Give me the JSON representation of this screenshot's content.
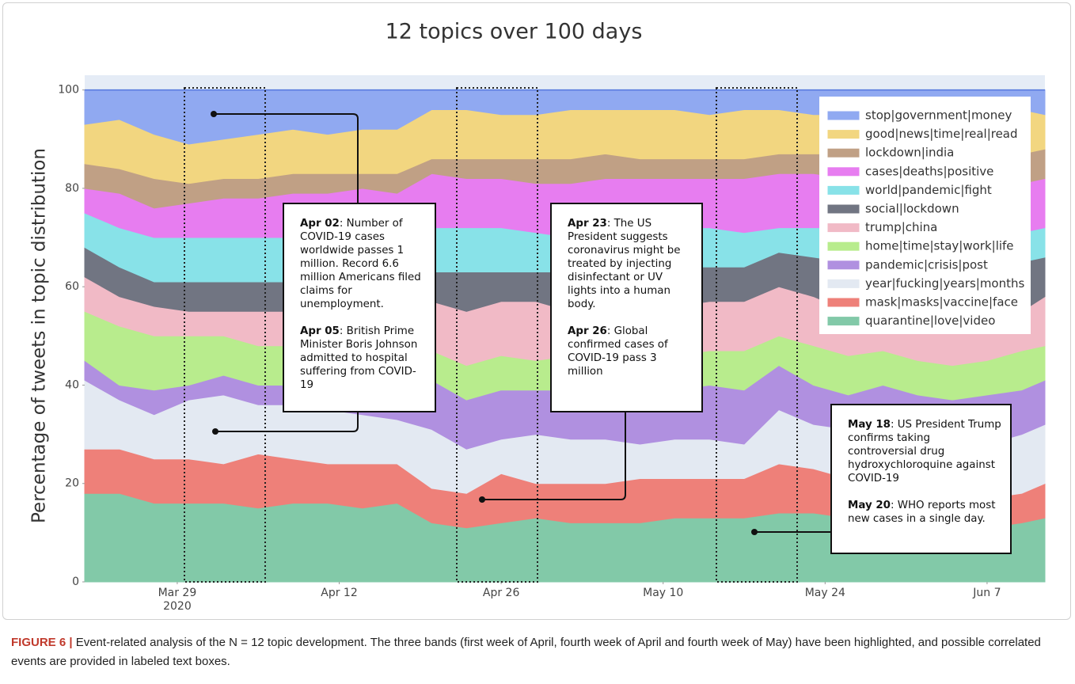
{
  "chart_data": {
    "type": "stacked_area",
    "title": "12 topics over 100 days",
    "y_label": "Percentage of tweets in topic distribution",
    "x": [
      "2020-03-21",
      "2020-03-24",
      "2020-03-27",
      "2020-03-30",
      "2020-04-02",
      "2020-04-05",
      "2020-04-08",
      "2020-04-11",
      "2020-04-14",
      "2020-04-17",
      "2020-04-20",
      "2020-04-23",
      "2020-04-26",
      "2020-04-29",
      "2020-05-02",
      "2020-05-05",
      "2020-05-08",
      "2020-05-11",
      "2020-05-14",
      "2020-05-17",
      "2020-05-20",
      "2020-05-23",
      "2020-05-26",
      "2020-05-29",
      "2020-06-01",
      "2020-06-04",
      "2020-06-07",
      "2020-06-10",
      "2020-06-12"
    ],
    "xlim": [
      "2020-03-21",
      "2020-06-12"
    ],
    "xticks": [
      {
        "value": "2020-03-29",
        "label": "Mar 29"
      },
      {
        "value": "2020-04-12",
        "label": "Apr 12"
      },
      {
        "value": "2020-04-26",
        "label": "Apr 26"
      },
      {
        "value": "2020-05-10",
        "label": "May 10"
      },
      {
        "value": "2020-05-24",
        "label": "May 24"
      },
      {
        "value": "2020-06-07",
        "label": "Jun 7"
      }
    ],
    "x_year_label": "2020",
    "ylim": [
      0,
      103
    ],
    "yticks": [
      0,
      20,
      40,
      60,
      80,
      100
    ],
    "legend": "top right",
    "series": [
      {
        "name": "quarantine|love|video",
        "color": "#82c9a8",
        "values": [
          18,
          18,
          16,
          16,
          16,
          15,
          16,
          16,
          15,
          16,
          12,
          11,
          12,
          13,
          12,
          12,
          12,
          13,
          13,
          13,
          14,
          14,
          13,
          14,
          14,
          12,
          11,
          12,
          13
        ]
      },
      {
        "name": "mask|masks|vaccine|face",
        "color": "#ee8079",
        "values": [
          9,
          9,
          9,
          9,
          8,
          11,
          9,
          8,
          9,
          8,
          7,
          7,
          10,
          7,
          8,
          8,
          9,
          8,
          8,
          8,
          10,
          9,
          8,
          7,
          6,
          6,
          6,
          6,
          7
        ]
      },
      {
        "name": "year|fucking|years|months",
        "color": "#e3e9f2",
        "values": [
          14,
          10,
          9,
          12,
          14,
          10,
          11,
          11,
          10,
          9,
          12,
          9,
          7,
          10,
          9,
          9,
          7,
          8,
          8,
          7,
          11,
          9,
          10,
          11,
          10,
          10,
          11,
          12,
          12
        ]
      },
      {
        "name": "pandemic|crisis|post",
        "color": "#b090e0",
        "values": [
          4,
          3,
          5,
          3,
          4,
          4,
          4,
          4,
          6,
          6,
          10,
          10,
          10,
          9,
          10,
          9,
          11,
          10,
          11,
          11,
          9,
          8,
          7,
          8,
          8,
          9,
          10,
          9,
          9
        ]
      },
      {
        "name": "home|time|stay|work|life",
        "color": "#b8ec8d",
        "values": [
          10,
          12,
          11,
          10,
          8,
          8,
          8,
          8,
          6,
          7,
          6,
          7,
          7,
          6,
          7,
          7,
          7,
          7,
          7,
          8,
          6,
          8,
          8,
          7,
          7,
          7,
          7,
          8,
          7
        ]
      },
      {
        "name": "trump|china",
        "color": "#f1bac6",
        "values": [
          7,
          6,
          6,
          5,
          5,
          7,
          7,
          7,
          9,
          10,
          10,
          11,
          11,
          12,
          9,
          10,
          9,
          10,
          10,
          10,
          10,
          10,
          9,
          7,
          8,
          8,
          8,
          8,
          10
        ]
      },
      {
        "name": "social|lockdown",
        "color": "#717582",
        "values": [
          6,
          6,
          5,
          6,
          6,
          6,
          6,
          6,
          5,
          4,
          6,
          8,
          6,
          6,
          8,
          8,
          8,
          8,
          7,
          7,
          7,
          8,
          10,
          10,
          10,
          11,
          11,
          10,
          8
        ]
      },
      {
        "name": "world|pandemic|fight",
        "color": "#88e2e8",
        "values": [
          7,
          8,
          9,
          9,
          9,
          9,
          9,
          10,
          10,
          10,
          9,
          9,
          9,
          8,
          7,
          7,
          8,
          8,
          8,
          7,
          5,
          6,
          7,
          7,
          7,
          7,
          7,
          6,
          6
        ]
      },
      {
        "name": "cases|deaths|positive",
        "color": "#e77df0",
        "values": [
          5,
          7,
          6,
          7,
          8,
          8,
          9,
          9,
          10,
          9,
          11,
          10,
          10,
          10,
          11,
          12,
          11,
          10,
          10,
          11,
          11,
          11,
          10,
          11,
          11,
          11,
          10,
          10,
          10
        ]
      },
      {
        "name": "lockdown|india",
        "color": "#c0a085",
        "values": [
          5,
          5,
          6,
          4,
          4,
          4,
          4,
          4,
          3,
          4,
          3,
          4,
          4,
          5,
          5,
          5,
          4,
          4,
          4,
          4,
          4,
          4,
          5,
          5,
          5,
          5,
          5,
          6,
          6
        ]
      },
      {
        "name": "good|news|time|real|read",
        "color": "#f2d680",
        "values": [
          8,
          10,
          9,
          8,
          8,
          9,
          9,
          8,
          9,
          9,
          10,
          10,
          9,
          9,
          10,
          9,
          10,
          10,
          9,
          10,
          9,
          8,
          8,
          8,
          9,
          9,
          9,
          9,
          7
        ]
      },
      {
        "name": "stop|government|money",
        "color": "#90a9f1",
        "values": [
          7,
          6,
          9,
          11,
          10,
          9,
          8,
          9,
          8,
          8,
          4,
          4,
          5,
          5,
          4,
          4,
          4,
          4,
          5,
          4,
          4,
          5,
          5,
          5,
          5,
          5,
          5,
          4,
          5
        ]
      }
    ],
    "annotations": [
      {
        "items": [
          {
            "date": "Apr 02",
            "text": ": Number of COVID-19 cases worldwide passes 1 million. Record 6.6 million Americans filed claims for unemployment."
          },
          {
            "date": "Apr 05",
            "text": ": British Prime Minister Boris Johnson admitted to hospital suffering from COVID-19"
          }
        ]
      },
      {
        "items": [
          {
            "date": "Apr 23",
            "text": ": The US President suggests coronavirus might be treated by injecting disinfectant or UV lights into a human body."
          },
          {
            "date": "Apr 26",
            "text": ": Global confirmed cases of COVID-19 pass 3 million"
          }
        ]
      },
      {
        "items": [
          {
            "date": "May 18",
            "text": ": US President Trump confirms taking controversial drug hydroxychloroquine against COVID-19"
          },
          {
            "date": "May 20",
            "text": ": WHO reports most new cases in a single day."
          }
        ]
      }
    ]
  },
  "caption": {
    "label": "FIGURE 6 |",
    "text": " Event-related analysis of the N = 12 topic development. The three bands (first week of April, fourth week of April and fourth week of May) have been highlighted, and possible correlated events are provided in labeled text boxes."
  }
}
